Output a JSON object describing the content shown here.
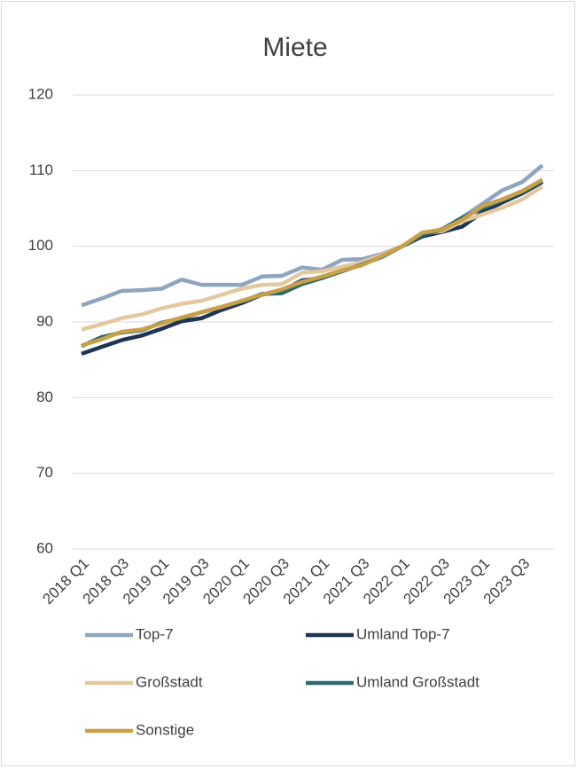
{
  "chart_data": {
    "type": "line",
    "title": "Miete",
    "categories": [
      "2018 Q1",
      null,
      "2018 Q3",
      null,
      "2019 Q1",
      null,
      "2019 Q3",
      null,
      "2020 Q1",
      null,
      "2020 Q3",
      null,
      "2021 Q1",
      null,
      "2021 Q3",
      null,
      "2022 Q1",
      null,
      "2022 Q3",
      null,
      "2023 Q1",
      null,
      "2023 Q3",
      null
    ],
    "series": [
      {
        "name": "Top-7",
        "color": "#8fa5bf",
        "values": [
          92.2,
          93.1,
          94.1,
          94.2,
          94.4,
          95.6,
          94.9,
          94.9,
          94.9,
          96.0,
          96.1,
          97.2,
          96.9,
          98.2,
          98.3,
          99.0,
          100.0,
          101.6,
          102.3,
          103.8,
          105.6,
          107.4,
          108.5,
          110.7
        ]
      },
      {
        "name": "Umland Top-7",
        "color": "#1f3450",
        "values": [
          85.8,
          86.7,
          87.6,
          88.2,
          89.1,
          90.1,
          90.5,
          91.6,
          92.5,
          93.6,
          94.1,
          95.5,
          95.8,
          96.8,
          97.6,
          98.7,
          100.0,
          101.3,
          101.9,
          102.6,
          104.5,
          105.8,
          107.0,
          108.5
        ]
      },
      {
        "name": "Großstadt",
        "color": "#e3c9a0",
        "values": [
          89.0,
          89.7,
          90.5,
          91.0,
          91.8,
          92.4,
          92.8,
          93.6,
          94.4,
          94.9,
          95.0,
          96.5,
          96.7,
          97.3,
          97.9,
          98.9,
          100.0,
          101.7,
          102.0,
          103.3,
          104.2,
          105.1,
          106.2,
          107.9
        ]
      },
      {
        "name": "Umland Großstadt",
        "color": "#2c6b6e",
        "values": [
          86.8,
          88.0,
          88.6,
          88.9,
          89.9,
          90.5,
          91.3,
          92.0,
          92.7,
          93.7,
          93.8,
          95.0,
          95.8,
          96.7,
          97.6,
          98.6,
          100.0,
          101.5,
          102.2,
          103.8,
          105.0,
          106.1,
          107.2,
          108.6
        ]
      },
      {
        "name": "Sonstige",
        "color": "#c9a04a",
        "values": [
          86.9,
          87.7,
          88.7,
          89.0,
          89.8,
          90.6,
          91.3,
          92.0,
          92.8,
          93.6,
          94.3,
          95.3,
          96.0,
          96.8,
          97.5,
          98.7,
          100.0,
          101.8,
          102.2,
          103.5,
          105.3,
          106.2,
          107.3,
          108.8
        ]
      }
    ],
    "ylim": [
      60,
      120
    ],
    "yticks": [
      60,
      70,
      80,
      90,
      100,
      110,
      120
    ],
    "grid": true
  }
}
